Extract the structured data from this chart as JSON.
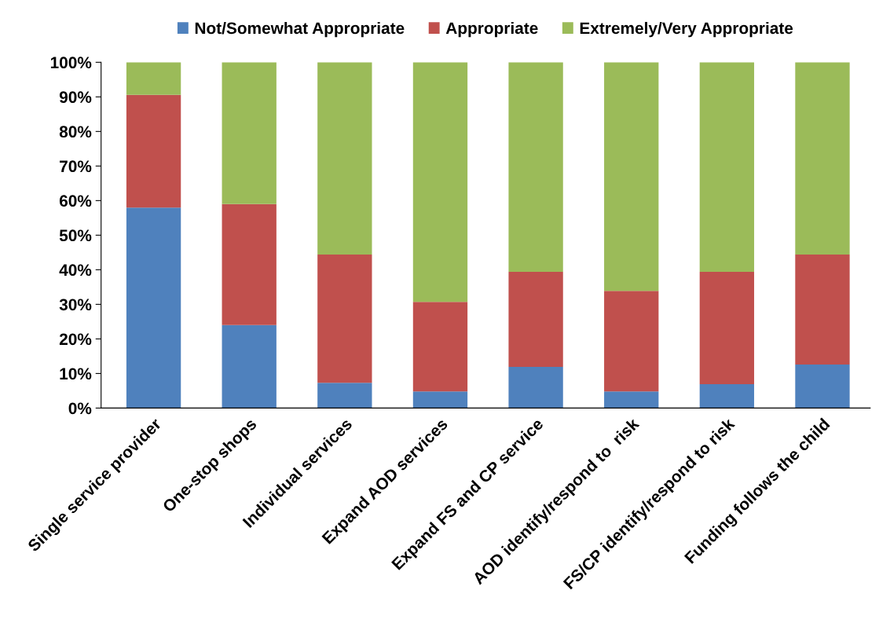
{
  "chart_data": {
    "type": "bar",
    "stacked": true,
    "categories": [
      "Single service provider",
      "One-stop shops",
      "Individual services",
      "Expand AOD services",
      "Expand FS and CP service",
      "AOD identify/respond to  risk",
      "FS/CP identify/respond to risk",
      "Funding follows the child"
    ],
    "series": [
      {
        "name": "Not/Somewhat Appropriate",
        "color": "#4f81bd",
        "values": [
          58,
          24,
          7.3,
          4.8,
          11.9,
          4.8,
          6.9,
          12.6
        ]
      },
      {
        "name": "Appropriate",
        "color": "#c0504d",
        "values": [
          32.6,
          35,
          37.1,
          25.9,
          27.5,
          29.1,
          32.5,
          31.8
        ]
      },
      {
        "name": "Extremely/Very Appropriate",
        "color": "#9bbb59",
        "values": [
          9.4,
          41,
          55.6,
          69.3,
          60.6,
          66.1,
          60.6,
          55.6
        ]
      }
    ],
    "ylim": [
      0,
      100
    ],
    "yticks": [
      {
        "value": 0,
        "label": "0%"
      },
      {
        "value": 10,
        "label": "10%"
      },
      {
        "value": 20,
        "label": "20%"
      },
      {
        "value": 30,
        "label": "30%"
      },
      {
        "value": 40,
        "label": "40%"
      },
      {
        "value": 50,
        "label": "50%"
      },
      {
        "value": 60,
        "label": "60%"
      },
      {
        "value": 70,
        "label": "70%"
      },
      {
        "value": 80,
        "label": "80%"
      },
      {
        "value": 90,
        "label": "90%"
      },
      {
        "value": 100,
        "label": "100%"
      }
    ],
    "grid": false,
    "legend": "top"
  }
}
